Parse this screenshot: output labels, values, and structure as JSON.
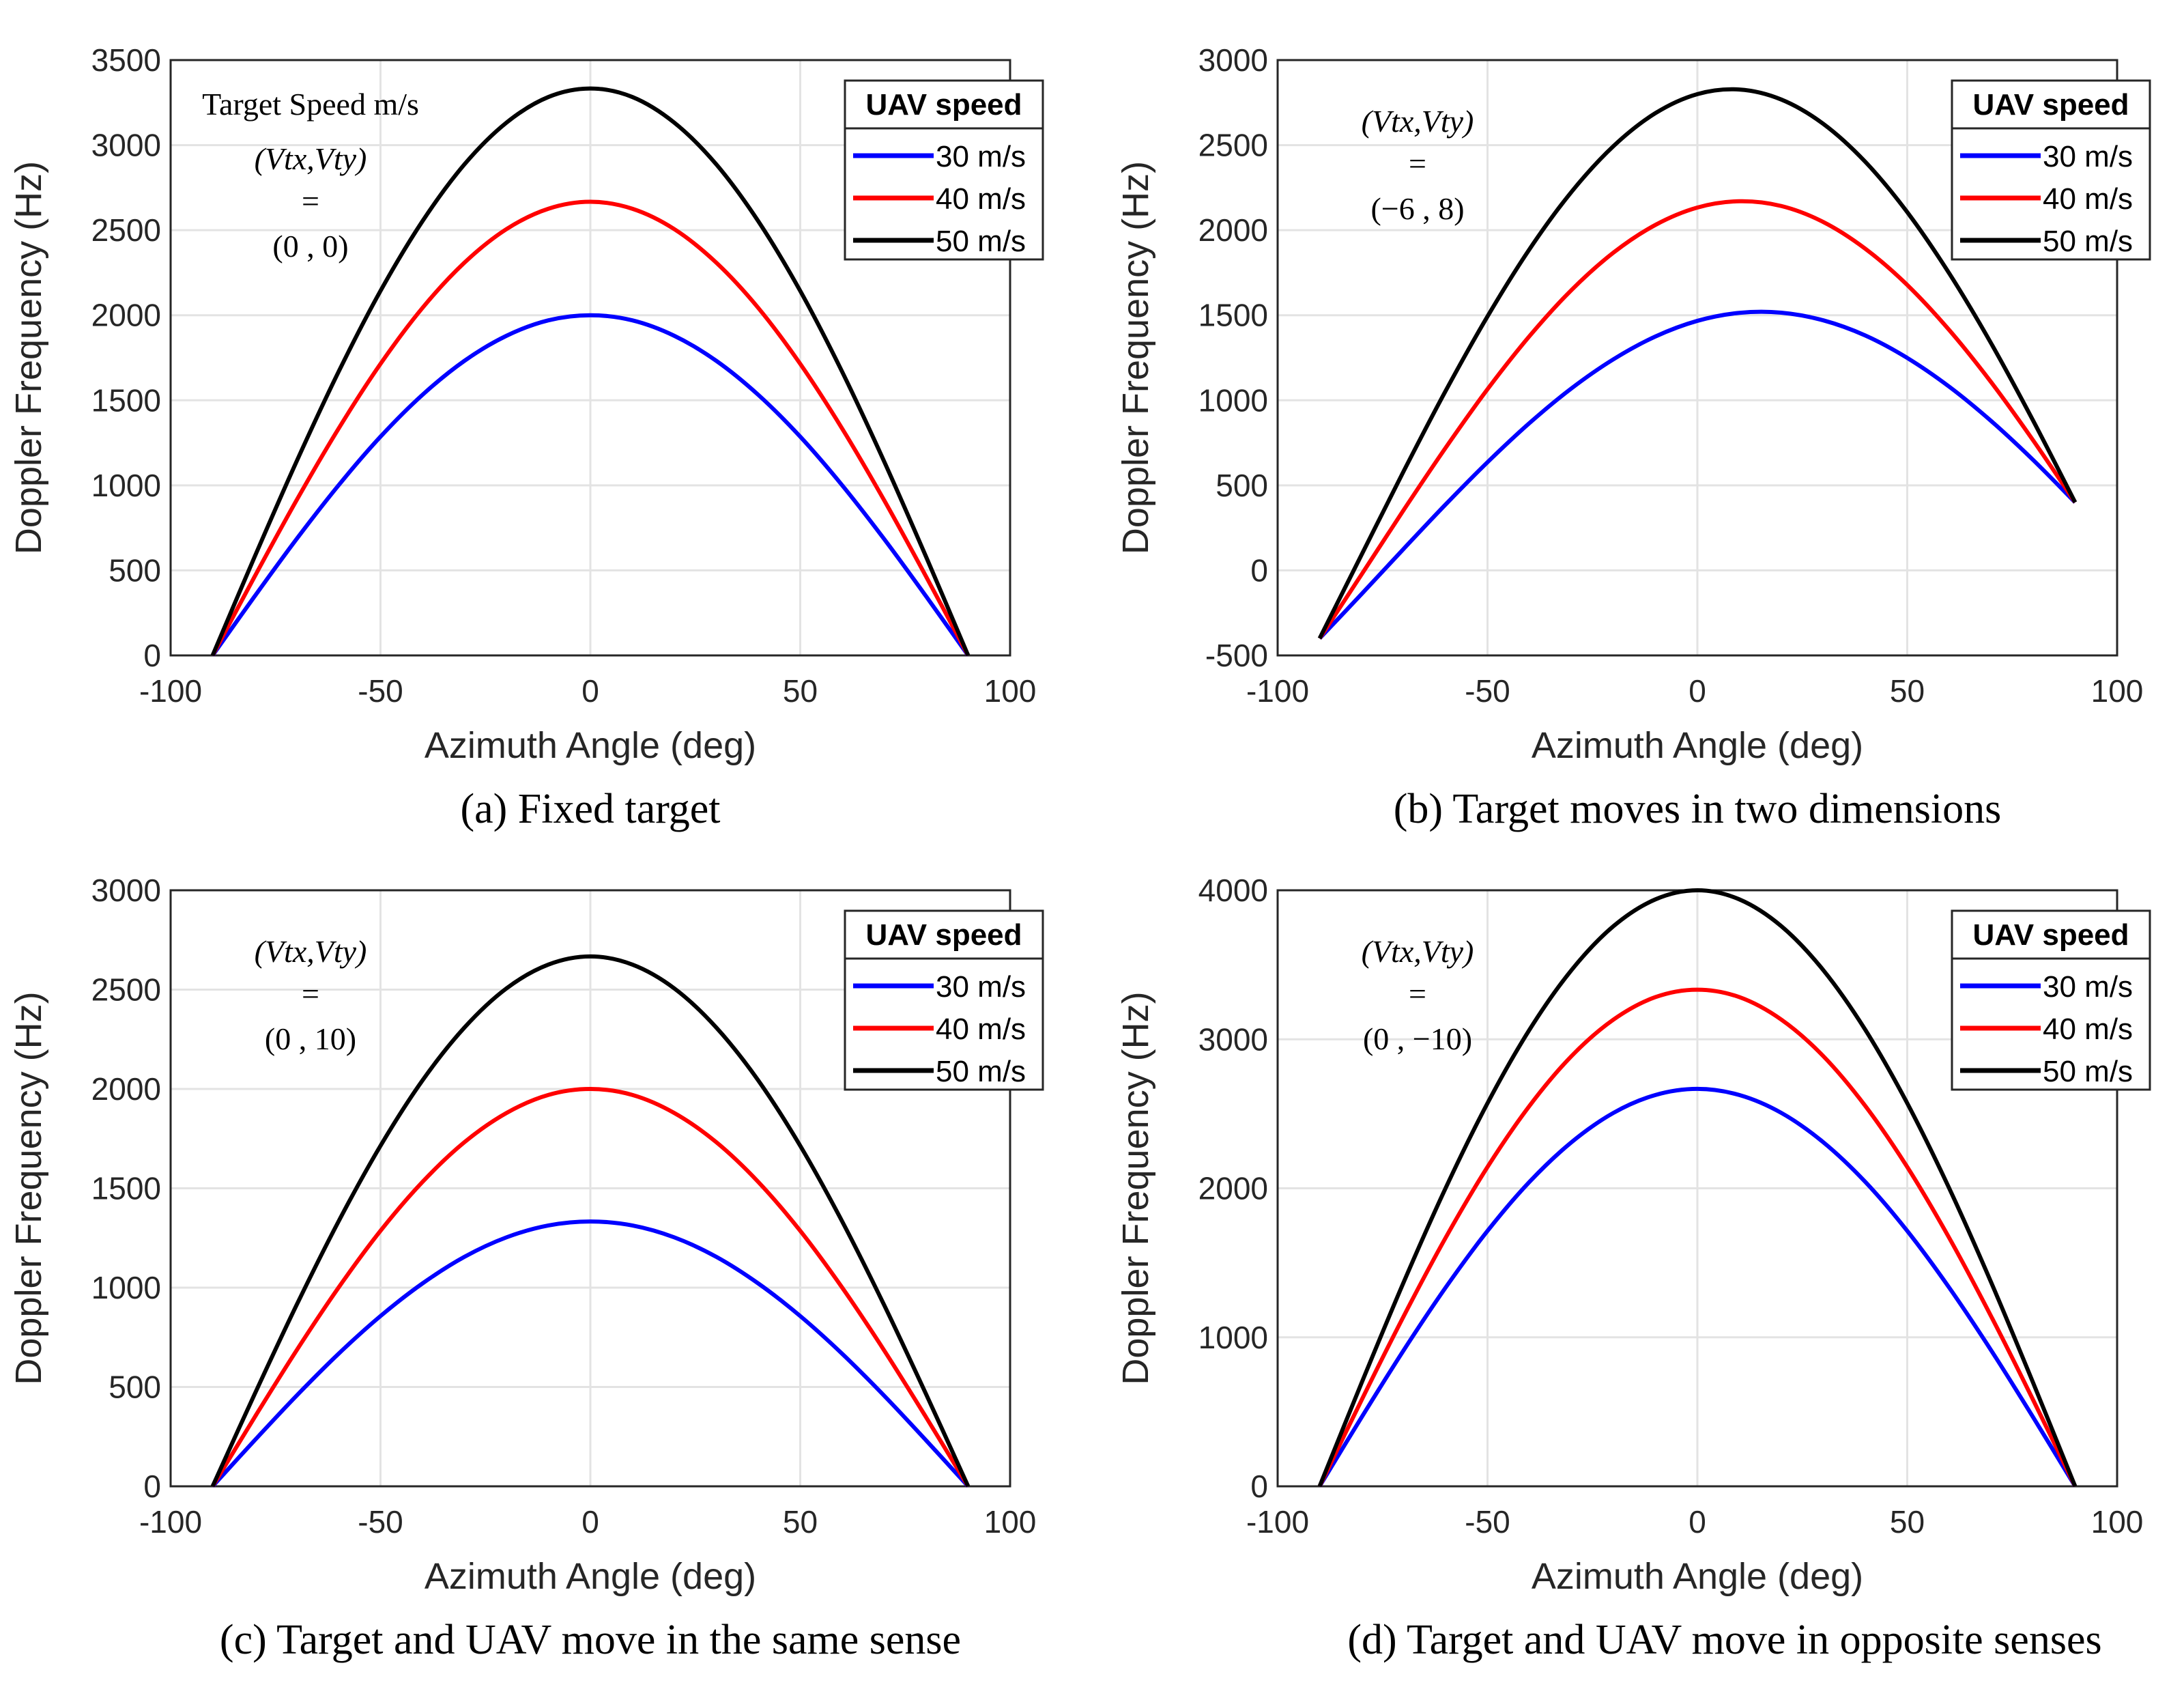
{
  "chart_data": [
    {
      "id": "a",
      "type": "line",
      "caption": "(a) Fixed target",
      "xlabel": "Azimuth Angle (deg)",
      "ylabel": "Doppler Frequency (Hz)",
      "xlim": [
        -100,
        100
      ],
      "ylim": [
        0,
        3500
      ],
      "grid": true,
      "xticks": [
        "-100",
        "-50",
        "0",
        "50",
        "100"
      ],
      "yticks": [
        "0",
        "500",
        "1000",
        "1500",
        "2000",
        "2500",
        "3000",
        "3500"
      ],
      "annotation": {
        "header": "Target Speed m/s",
        "vars": "(Vtx,Vty)",
        "eq": "=",
        "value": "(0 , 0)"
      },
      "legend": {
        "title": "UAV speed",
        "placement": "top-right"
      },
      "x": [
        -90,
        -80,
        -70,
        -60,
        -50,
        -40,
        -30,
        -20,
        -10,
        0,
        10,
        20,
        30,
        40,
        50,
        60,
        70,
        80,
        90
      ],
      "series": [
        {
          "name": "30 m/s",
          "color": "#0000ff",
          "values": [
            0,
            347,
            684,
            1000,
            1286,
            1532,
            1732,
            1879,
            1970,
            2000,
            1970,
            1879,
            1732,
            1532,
            1286,
            1000,
            684,
            347,
            0
          ]
        },
        {
          "name": "40 m/s",
          "color": "#ff0000",
          "values": [
            0,
            463,
            912,
            1333,
            1714,
            2043,
            2309,
            2506,
            2626,
            2667,
            2626,
            2506,
            2309,
            2043,
            1714,
            1333,
            912,
            463,
            0
          ]
        },
        {
          "name": "50 m/s",
          "color": "#000000",
          "values": [
            0,
            579,
            1140,
            1667,
            2143,
            2553,
            2887,
            3132,
            3283,
            3333,
            3283,
            3132,
            2887,
            2553,
            2143,
            1667,
            1140,
            579,
            0
          ]
        }
      ]
    },
    {
      "id": "b",
      "type": "line",
      "caption": "(b) Target moves in two dimensions",
      "xlabel": "Azimuth Angle (deg)",
      "ylabel": "Doppler Frequency (Hz)",
      "xlim": [
        -100,
        100
      ],
      "ylim": [
        -500,
        3000
      ],
      "grid": true,
      "xticks": [
        "-100",
        "-50",
        "0",
        "50",
        "100"
      ],
      "yticks": [
        "-500",
        "0",
        "500",
        "1000",
        "1500",
        "2000",
        "2500",
        "3000"
      ],
      "annotation": {
        "vars": "(Vtx,Vty)",
        "eq": "=",
        "value": "(−6 , 8)"
      },
      "legend": {
        "title": "UAV speed",
        "placement": "top-right"
      },
      "x": [
        -90,
        -80,
        -70,
        -60,
        -50,
        -40,
        -30,
        -20,
        -10,
        0,
        10,
        20,
        30,
        40,
        50,
        60,
        70,
        80,
        90
      ],
      "series": [
        {
          "name": "30 m/s",
          "color": "#0000ff",
          "values": [
            -400,
            -139,
            126,
            387,
            636,
            866,
            1070,
            1241,
            1375,
            1467,
            1514,
            1515,
            1470,
            1381,
            1249,
            1080,
            878,
            649,
            400
          ]
        },
        {
          "name": "40 m/s",
          "color": "#ff0000",
          "values": [
            -400,
            -24,
            354,
            720,
            1065,
            1377,
            1648,
            1868,
            2031,
            2133,
            2170,
            2142,
            2048,
            1891,
            1678,
            1413,
            1106,
            764,
            400
          ]
        },
        {
          "name": "50 m/s",
          "color": "#000000",
          "values": [
            -400,
            92,
            582,
            1054,
            1493,
            1888,
            2225,
            2494,
            2688,
            2800,
            2827,
            2768,
            2625,
            2402,
            2106,
            1746,
            1334,
            880,
            400
          ]
        }
      ]
    },
    {
      "id": "c",
      "type": "line",
      "caption": "(c) Target and  UAV move in the same sense",
      "xlabel": "Azimuth Angle (deg)",
      "ylabel": "Doppler Frequency (Hz)",
      "xlim": [
        -100,
        100
      ],
      "ylim": [
        0,
        3000
      ],
      "grid": true,
      "xticks": [
        "-100",
        "-50",
        "0",
        "50",
        "100"
      ],
      "yticks": [
        "0",
        "500",
        "1000",
        "1500",
        "2000",
        "2500",
        "3000"
      ],
      "annotation": {
        "vars": "(Vtx,Vty)",
        "eq": "=",
        "value": "(0 , 10)"
      },
      "legend": {
        "title": "UAV speed",
        "placement": "top-right"
      },
      "x": [
        -90,
        -80,
        -70,
        -60,
        -50,
        -40,
        -30,
        -20,
        -10,
        0,
        10,
        20,
        30,
        40,
        50,
        60,
        70,
        80,
        90
      ],
      "series": [
        {
          "name": "30 m/s",
          "color": "#0000ff",
          "values": [
            0,
            231,
            456,
            667,
            857,
            1021,
            1155,
            1253,
            1313,
            1333,
            1313,
            1253,
            1155,
            1021,
            857,
            667,
            456,
            231,
            0
          ]
        },
        {
          "name": "40 m/s",
          "color": "#ff0000",
          "values": [
            0,
            347,
            684,
            1000,
            1286,
            1532,
            1732,
            1879,
            1970,
            2000,
            1970,
            1879,
            1732,
            1532,
            1286,
            1000,
            684,
            347,
            0
          ]
        },
        {
          "name": "50 m/s",
          "color": "#000000",
          "values": [
            0,
            463,
            912,
            1333,
            1714,
            2043,
            2309,
            2506,
            2626,
            2667,
            2626,
            2506,
            2309,
            2043,
            1714,
            1333,
            912,
            463,
            0
          ]
        }
      ]
    },
    {
      "id": "d",
      "type": "line",
      "caption": "(d) Target and UAV move in opposite senses",
      "xlabel": "Azimuth Angle (deg)",
      "ylabel": "Doppler Frequency (Hz)",
      "xlim": [
        -100,
        100
      ],
      "ylim": [
        0,
        4000
      ],
      "grid": true,
      "xticks": [
        "-100",
        "-50",
        "0",
        "50",
        "100"
      ],
      "yticks": [
        "0",
        "1000",
        "2000",
        "3000",
        "4000"
      ],
      "annotation": {
        "vars": "(Vtx,Vty)",
        "eq": "=",
        "value": "(0 , −10)"
      },
      "legend": {
        "title": "UAV speed",
        "placement": "top-right"
      },
      "x": [
        -90,
        -80,
        -70,
        -60,
        -50,
        -40,
        -30,
        -20,
        -10,
        0,
        10,
        20,
        30,
        40,
        50,
        60,
        70,
        80,
        90
      ],
      "series": [
        {
          "name": "30 m/s",
          "color": "#0000ff",
          "values": [
            0,
            463,
            912,
            1333,
            1714,
            2043,
            2309,
            2506,
            2626,
            2667,
            2626,
            2506,
            2309,
            2043,
            1714,
            1333,
            912,
            463,
            0
          ]
        },
        {
          "name": "40 m/s",
          "color": "#ff0000",
          "values": [
            0,
            579,
            1140,
            1667,
            2143,
            2553,
            2887,
            3132,
            3283,
            3333,
            3283,
            3132,
            2887,
            2553,
            2143,
            1667,
            1140,
            579,
            0
          ]
        },
        {
          "name": "50 m/s",
          "color": "#000000",
          "values": [
            0,
            694,
            1368,
            2000,
            2571,
            3064,
            3464,
            3759,
            3939,
            4000,
            3939,
            3759,
            3464,
            3064,
            2571,
            2000,
            1368,
            694,
            0
          ]
        }
      ]
    }
  ]
}
